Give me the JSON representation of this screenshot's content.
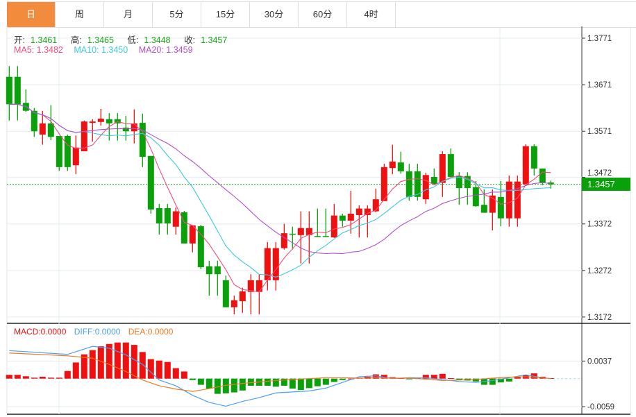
{
  "tabs": [
    {
      "label": "日",
      "active": true
    },
    {
      "label": "周"
    },
    {
      "label": "月"
    },
    {
      "label": "5分"
    },
    {
      "label": "15分"
    },
    {
      "label": "30分"
    },
    {
      "label": "60分"
    },
    {
      "label": "4时"
    }
  ],
  "ohlc_info": {
    "open_label": "开:",
    "open": "1.3461",
    "high_label": "高:",
    "high": "1.3465",
    "low_label": "低:",
    "low": "1.3448",
    "close_label": "收:",
    "close": "1.3457"
  },
  "ma_info": {
    "ma5": "MA5: 1.3482",
    "ma10": "MA10: 1.3450",
    "ma20": "MA20: 1.3459"
  },
  "macd_info": {
    "macd": "MACD:0.0000",
    "diff": "DIFF:0.0000",
    "dea": "DEA:0.0000"
  },
  "current_price": "1.3457",
  "colors": {
    "up": "#f01010",
    "down": "#0aa00a",
    "ma5": "#ee4d7a",
    "ma10": "#3cc8e0",
    "ma20": "#b050c8",
    "diff": "#4aa0f0",
    "dea": "#f07820",
    "active_tab": "#f28c3c"
  },
  "chart_data": [
    {
      "type": "candlestick",
      "y_ticks": [
        "1.3771",
        "1.3671",
        "1.3571",
        "1.3472",
        "1.3372",
        "1.3272",
        "1.3172"
      ],
      "ylim": [
        1.3172,
        1.3771
      ],
      "moving_averages": [
        5,
        10,
        20
      ],
      "candles_ohlc": [
        [
          1.3688,
          1.3629,
          1.3711,
          1.3594
        ],
        [
          1.3688,
          1.3629,
          1.3711,
          1.3594
        ],
        [
          1.3632,
          1.3615,
          1.3661,
          1.3613
        ],
        [
          1.3615,
          1.3571,
          1.3621,
          1.3559
        ],
        [
          1.3564,
          1.3588,
          1.3615,
          1.3542
        ],
        [
          1.3588,
          1.3559,
          1.3627,
          1.3552
        ],
        [
          1.3561,
          1.3494,
          1.3561,
          1.3486
        ],
        [
          1.3561,
          1.3494,
          1.3564,
          1.3486
        ],
        [
          1.3498,
          1.3536,
          1.3562,
          1.3479
        ],
        [
          1.3528,
          1.3592,
          1.3594,
          1.3528
        ],
        [
          1.3589,
          1.3592,
          1.3597,
          1.3549
        ],
        [
          1.3591,
          1.3598,
          1.3619,
          1.3583
        ],
        [
          1.3597,
          1.3588,
          1.361,
          1.3551
        ],
        [
          1.3597,
          1.3588,
          1.361,
          1.3551
        ],
        [
          1.3579,
          1.3571,
          1.3604,
          1.3551
        ],
        [
          1.3571,
          1.3588,
          1.3618,
          1.3545
        ],
        [
          1.3589,
          1.3516,
          1.3609,
          1.3494
        ],
        [
          1.3518,
          1.3403,
          1.3518,
          1.3394
        ],
        [
          1.3406,
          1.3373,
          1.3415,
          1.3349
        ],
        [
          1.3406,
          1.3373,
          1.3415,
          1.3349
        ],
        [
          1.3366,
          1.3399,
          1.3407,
          1.3349
        ],
        [
          1.3397,
          1.333,
          1.34,
          1.333
        ],
        [
          1.333,
          1.3369,
          1.3369,
          1.3311
        ],
        [
          1.3367,
          1.3279,
          1.337,
          1.3275
        ],
        [
          1.3281,
          1.3264,
          1.3293,
          1.3218
        ],
        [
          1.3281,
          1.3264,
          1.3293,
          1.3218
        ],
        [
          1.3251,
          1.3193,
          1.3261,
          1.3193
        ],
        [
          1.3193,
          1.3208,
          1.3218,
          1.3178
        ],
        [
          1.3206,
          1.3227,
          1.3235,
          1.3181
        ],
        [
          1.3226,
          1.3251,
          1.3264,
          1.3178
        ],
        [
          1.3226,
          1.3251,
          1.3264,
          1.3178
        ],
        [
          1.3251,
          1.332,
          1.3333,
          1.3229
        ],
        [
          1.3251,
          1.332,
          1.3333,
          1.3229
        ],
        [
          1.332,
          1.3352,
          1.3372,
          1.3317
        ],
        [
          1.3351,
          1.3349,
          1.3366,
          1.3317
        ],
        [
          1.3348,
          1.3363,
          1.3399,
          1.3287
        ],
        [
          1.3348,
          1.3363,
          1.3399,
          1.3287
        ],
        [
          1.3346,
          1.3345,
          1.3405,
          1.3345
        ],
        [
          1.3346,
          1.3345,
          1.3405,
          1.3345
        ],
        [
          1.3343,
          1.339,
          1.3415,
          1.3342
        ],
        [
          1.339,
          1.3379,
          1.3394,
          1.3366
        ],
        [
          1.3379,
          1.3394,
          1.3443,
          1.3351
        ],
        [
          1.3391,
          1.3405,
          1.3412,
          1.3343
        ],
        [
          1.3391,
          1.3405,
          1.3412,
          1.3343
        ],
        [
          1.3399,
          1.3425,
          1.3448,
          1.3397
        ],
        [
          1.3421,
          1.3494,
          1.3501,
          1.3421
        ],
        [
          1.3492,
          1.3506,
          1.3542,
          1.3479
        ],
        [
          1.3504,
          1.3485,
          1.3527,
          1.348
        ],
        [
          1.3485,
          1.343,
          1.3501,
          1.3422
        ],
        [
          1.3485,
          1.343,
          1.3501,
          1.3422
        ],
        [
          1.3425,
          1.3477,
          1.3482,
          1.3415
        ],
        [
          1.3473,
          1.3458,
          1.3491,
          1.3455
        ],
        [
          1.346,
          1.3522,
          1.3528,
          1.343
        ],
        [
          1.3522,
          1.3473,
          1.3534,
          1.3473
        ],
        [
          1.3475,
          1.3449,
          1.3483,
          1.3413
        ],
        [
          1.3475,
          1.3449,
          1.3483,
          1.3413
        ],
        [
          1.3451,
          1.341,
          1.3464,
          1.3409
        ],
        [
          1.3413,
          1.3396,
          1.3446,
          1.3396
        ],
        [
          1.3396,
          1.3433,
          1.3446,
          1.3358
        ],
        [
          1.343,
          1.3384,
          1.3464,
          1.3367
        ],
        [
          1.3384,
          1.3463,
          1.3476,
          1.3366
        ],
        [
          1.3384,
          1.3463,
          1.3476,
          1.3366
        ],
        [
          1.3457,
          1.3539,
          1.3543,
          1.3457
        ],
        [
          1.3539,
          1.3491,
          1.3543,
          1.3476
        ],
        [
          1.3491,
          1.3461,
          1.3491,
          1.3455
        ],
        [
          1.3461,
          1.3457,
          1.3465,
          1.3448
        ]
      ]
    },
    {
      "type": "bar+line",
      "y_ticks": [
        "0.0037",
        "-0.0059"
      ],
      "macd_hist": [
        0.0008,
        0.0008,
        0.0005,
        0.0002,
        0.0004,
        0.0002,
        0.0002,
        0.0016,
        0.0034,
        0.0051,
        0.006,
        0.0068,
        0.0073,
        0.0076,
        0.0076,
        0.0071,
        0.0056,
        0.0041,
        0.0038,
        0.0035,
        0.0022,
        0.0015,
        -0.0003,
        -0.0013,
        -0.0021,
        -0.0032,
        -0.0031,
        -0.0029,
        -0.0025,
        -0.0015,
        -0.0015,
        -0.0015,
        -0.0017,
        -0.0015,
        -0.0021,
        -0.0024,
        -0.002,
        -0.0016,
        -0.0013,
        -0.0007,
        -0.0003,
        0.0,
        0.0002,
        0.0004,
        0.0009,
        0.0008,
        0.0003,
        0.0001,
        -0.0001,
        0.0001,
        0.0008,
        0.0008,
        0.001,
        0.0001,
        -0.0002,
        -0.0004,
        -0.0006,
        -0.0013,
        -0.0013,
        -0.0008,
        -0.0006,
        0.0004,
        0.0007,
        0.0011,
        0.0004,
        0.0001
      ],
      "diff": [
        [
          0,
          0.0059
        ],
        [
          7,
          0.0051
        ],
        [
          10,
          0.0068
        ],
        [
          12,
          0.0064
        ],
        [
          14,
          0.005
        ],
        [
          16,
          0.003
        ],
        [
          18,
          -0.0003
        ],
        [
          20,
          -0.0015
        ],
        [
          22,
          -0.0035
        ],
        [
          24,
          -0.005
        ],
        [
          26,
          -0.0058
        ],
        [
          28,
          -0.0048
        ],
        [
          30,
          -0.004
        ],
        [
          32,
          -0.003
        ],
        [
          34,
          -0.0028
        ],
        [
          36,
          -0.0026
        ],
        [
          38,
          -0.002
        ],
        [
          40,
          -0.0008
        ],
        [
          42,
          0.0004
        ],
        [
          44,
          0.0006
        ],
        [
          46,
          0.0
        ],
        [
          48,
          0.0002
        ],
        [
          50,
          0.0002
        ],
        [
          52,
          -0.0002
        ],
        [
          54,
          -0.0006
        ],
        [
          56,
          -0.0008
        ],
        [
          58,
          -0.0004
        ],
        [
          60,
          0.0002
        ],
        [
          62,
          0.0008
        ],
        [
          64,
          0.0002
        ],
        [
          65,
          0.0
        ]
      ],
      "dea": [
        [
          0,
          0.0054
        ],
        [
          7,
          0.0048
        ],
        [
          10,
          0.0043
        ],
        [
          12,
          0.003
        ],
        [
          14,
          0.0015
        ],
        [
          16,
          -0.0003
        ],
        [
          18,
          -0.0015
        ],
        [
          20,
          -0.0022
        ],
        [
          22,
          -0.0027
        ],
        [
          24,
          -0.0021
        ],
        [
          26,
          -0.0014
        ],
        [
          28,
          -0.001
        ],
        [
          30,
          -0.0007
        ],
        [
          32,
          -0.0004
        ],
        [
          34,
          -0.0002
        ],
        [
          36,
          0.0
        ],
        [
          38,
          0.0002
        ],
        [
          40,
          0.0002
        ],
        [
          42,
          0.0001
        ],
        [
          44,
          0.0002
        ],
        [
          46,
          0.0001
        ],
        [
          48,
          0.0001
        ],
        [
          50,
          -0.0001
        ],
        [
          52,
          -0.0004
        ],
        [
          54,
          -0.0003
        ],
        [
          56,
          -0.0002
        ],
        [
          58,
          0.0001
        ],
        [
          60,
          0.0003
        ],
        [
          62,
          0.0004
        ],
        [
          64,
          0.0002
        ],
        [
          65,
          0.0
        ]
      ]
    }
  ]
}
